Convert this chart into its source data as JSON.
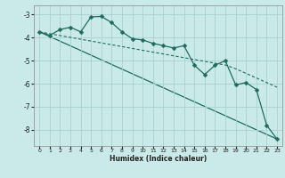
{
  "xlabel": "Humidex (Indice chaleur)",
  "background_color": "#caeaea",
  "grid_color": "#aad0d0",
  "line_color": "#1e6b5e",
  "xlim": [
    -0.5,
    23.5
  ],
  "ylim": [
    -8.7,
    -2.6
  ],
  "yticks": [
    -8,
    -7,
    -6,
    -5,
    -4,
    -3
  ],
  "xticks": [
    0,
    1,
    2,
    3,
    4,
    5,
    6,
    7,
    8,
    9,
    10,
    11,
    12,
    13,
    14,
    15,
    16,
    17,
    18,
    19,
    20,
    21,
    22,
    23
  ],
  "series_main": {
    "x": [
      0,
      1,
      2,
      3,
      4,
      5,
      6,
      7,
      8,
      9,
      10,
      11,
      12,
      13,
      14,
      15,
      16,
      17,
      18,
      19,
      20,
      21,
      22,
      23
    ],
    "y": [
      -3.75,
      -3.9,
      -3.65,
      -3.55,
      -3.75,
      -3.1,
      -3.08,
      -3.35,
      -3.75,
      -4.05,
      -4.1,
      -4.25,
      -4.35,
      -4.45,
      -4.35,
      -5.2,
      -5.6,
      -5.2,
      -5.0,
      -6.05,
      -5.95,
      -6.25,
      -7.8,
      -8.4
    ],
    "linewidth": 0.9,
    "markersize": 2.5
  },
  "series_regression": {
    "x": [
      0,
      1,
      2,
      3,
      4,
      5,
      6,
      7,
      8,
      9,
      10,
      11,
      12,
      13,
      14,
      15,
      16,
      17,
      18,
      19,
      20,
      21,
      22,
      23
    ],
    "y": [
      -3.75,
      -3.83,
      -3.91,
      -3.99,
      -4.07,
      -4.15,
      -4.23,
      -4.31,
      -4.39,
      -4.47,
      -4.55,
      -4.63,
      -4.71,
      -4.79,
      -4.87,
      -4.95,
      -5.03,
      -5.11,
      -5.19,
      -5.35,
      -5.55,
      -5.75,
      -5.95,
      -6.15
    ],
    "linewidth": 0.8
  },
  "series_straight": {
    "x": [
      0,
      23
    ],
    "y": [
      -3.75,
      -8.4
    ],
    "linewidth": 0.9
  }
}
